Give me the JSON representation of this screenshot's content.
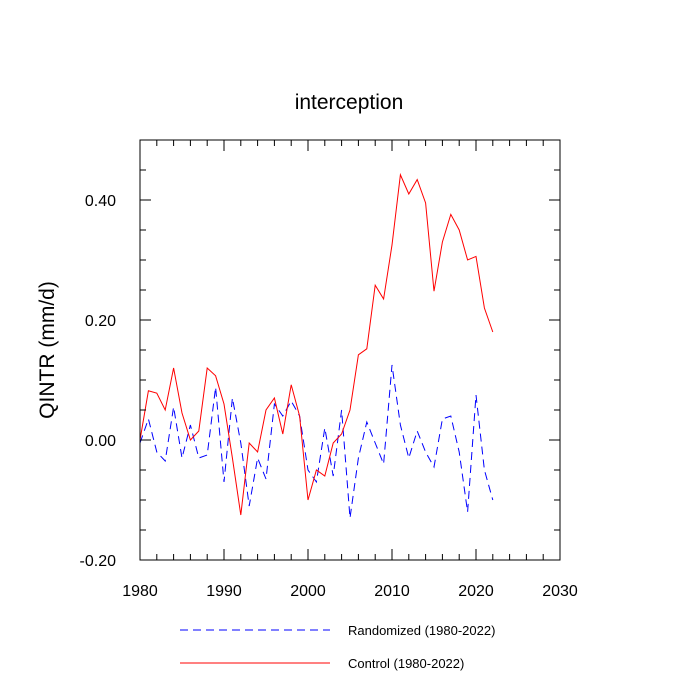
{
  "chart_data": {
    "type": "line",
    "title": "interception",
    "xlabel": "",
    "ylabel": "QINTR  (mm/d)",
    "xlim": [
      1980,
      2030
    ],
    "ylim": [
      -0.2,
      0.5
    ],
    "x_ticks": [
      1980,
      1990,
      2000,
      2010,
      2020,
      2030
    ],
    "x_tick_labels": [
      "1980",
      "1990",
      "2000",
      "2010",
      "2020",
      "2030"
    ],
    "y_ticks": [
      -0.2,
      0.0,
      0.2,
      0.4
    ],
    "y_tick_labels": [
      "-0.20",
      "0.00",
      "0.20",
      "0.40"
    ],
    "grid": false,
    "legend_position": "bottom",
    "x": [
      1980,
      1981,
      1982,
      1983,
      1984,
      1985,
      1986,
      1987,
      1988,
      1989,
      1990,
      1991,
      1992,
      1993,
      1994,
      1995,
      1996,
      1997,
      1998,
      1999,
      2000,
      2001,
      2002,
      2003,
      2004,
      2005,
      2006,
      2007,
      2008,
      2009,
      2010,
      2011,
      2012,
      2013,
      2014,
      2015,
      2016,
      2017,
      2018,
      2019,
      2020,
      2021,
      2022
    ],
    "series": [
      {
        "name": "Randomized (1980-2022)",
        "color": "#0000ff",
        "style": "dashed",
        "values": [
          -0.005,
          0.035,
          -0.02,
          -0.035,
          0.055,
          -0.03,
          0.025,
          -0.03,
          -0.025,
          0.088,
          -0.07,
          0.07,
          -0.005,
          -0.11,
          -0.03,
          -0.065,
          0.06,
          0.04,
          0.065,
          0.04,
          -0.05,
          -0.07,
          0.02,
          -0.06,
          0.05,
          -0.13,
          -0.03,
          0.03,
          -0.005,
          -0.04,
          0.125,
          0.025,
          -0.03,
          0.015,
          -0.02,
          -0.045,
          0.035,
          0.04,
          -0.02,
          -0.12,
          0.075,
          -0.05,
          -0.1
        ]
      },
      {
        "name": "Control (1980-2022)",
        "color": "#ff0000",
        "style": "solid",
        "values": [
          0.0,
          0.082,
          0.078,
          0.05,
          0.12,
          0.045,
          0.0,
          0.015,
          0.12,
          0.107,
          0.06,
          -0.03,
          -0.125,
          -0.005,
          -0.02,
          0.05,
          0.07,
          0.01,
          0.092,
          0.04,
          -0.1,
          -0.05,
          -0.06,
          -0.005,
          0.01,
          0.05,
          0.142,
          0.152,
          0.258,
          0.235,
          0.325,
          0.442,
          0.41,
          0.434,
          0.395,
          0.248,
          0.33,
          0.376,
          0.35,
          0.3,
          0.306,
          0.22,
          0.18
        ]
      }
    ]
  }
}
